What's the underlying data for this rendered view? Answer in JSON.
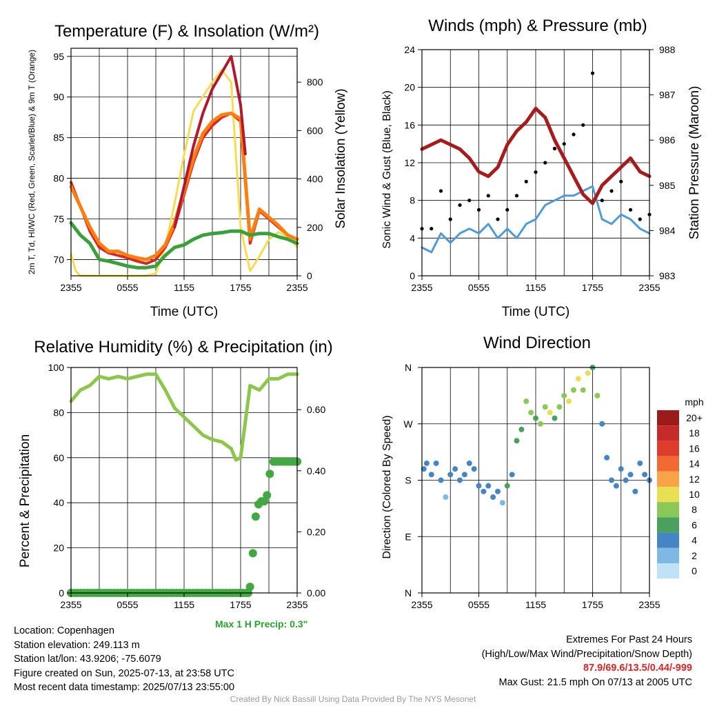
{
  "chart_data": [
    {
      "type": "line",
      "title": "Temperature (F) & Insolation (W/m²)",
      "xlabel": "Time (UTC)",
      "ylabel": "2m T, Td, HI/WC (Red, Green, Scarlet/Blue) & 9m T (Orange)",
      "y2label": "Solar Insolation (Yellow)",
      "x_ticks": [
        "2355",
        "0555",
        "1155",
        "1755",
        "2355"
      ],
      "ylim": [
        68,
        96
      ],
      "y_ticks": [
        70,
        75,
        80,
        85,
        90,
        95
      ],
      "y2lim": [
        0,
        940
      ],
      "y2_ticks": [
        0,
        200,
        400,
        600,
        800
      ],
      "colors": {
        "temp": "#d62728",
        "heat_index": "#b2182b",
        "temp_9m": "#ff7f0e",
        "dewpoint": "#3aa03a",
        "solar": "#f7dc4f"
      },
      "series": [
        {
          "key": "temp",
          "x": [
            0,
            1,
            2,
            3,
            4,
            5,
            6,
            7,
            8,
            9,
            10,
            11,
            12,
            13,
            14,
            15,
            16,
            17,
            18,
            19,
            20,
            21,
            22,
            23,
            24
          ],
          "values": [
            79.5,
            76.5,
            73.5,
            71.5,
            70.8,
            70.5,
            70.2,
            69.8,
            69.5,
            70,
            71.5,
            74,
            78,
            82,
            85,
            86.5,
            87.5,
            88,
            87,
            72,
            76,
            75,
            74,
            73,
            72.5
          ]
        },
        {
          "key": "temp_9m",
          "x": [
            0,
            1,
            2,
            3,
            4,
            5,
            6,
            7,
            8,
            9,
            10,
            11,
            12,
            13,
            14,
            15,
            16,
            17,
            18,
            19,
            20,
            21,
            22,
            23,
            24
          ],
          "values": [
            79,
            76.5,
            74,
            72,
            71,
            71,
            70.5,
            70.2,
            70,
            70.5,
            71.8,
            74.5,
            78.5,
            82.5,
            85.5,
            87,
            87.8,
            88,
            87.3,
            72.5,
            76.2,
            75.2,
            74.2,
            73,
            72.5
          ]
        },
        {
          "key": "heat_index",
          "x": [
            11,
            12,
            13,
            14,
            15,
            16,
            16.5,
            17,
            17.5,
            18,
            18.5
          ],
          "values": [
            74,
            79,
            84,
            88,
            91,
            93,
            94,
            95,
            92,
            89,
            83
          ]
        },
        {
          "key": "dewpoint",
          "x": [
            0,
            1,
            2,
            3,
            4,
            5,
            6,
            7,
            8,
            9,
            10,
            11,
            12,
            13,
            14,
            15,
            16,
            17,
            18,
            19,
            20,
            21,
            22,
            23,
            24
          ],
          "values": [
            74.5,
            73,
            72,
            70,
            69.8,
            69.5,
            69.2,
            69,
            69,
            69.2,
            70.5,
            71.5,
            71.8,
            72.5,
            73,
            73.2,
            73.3,
            73.5,
            73.5,
            73,
            73.2,
            73.2,
            72.8,
            72.5,
            72
          ]
        },
        {
          "key": "solar",
          "x": [
            0,
            0.5,
            1,
            2,
            3,
            4,
            5,
            6,
            7,
            8,
            9,
            10,
            11,
            12,
            13,
            14,
            15,
            16,
            17,
            18,
            19,
            20,
            21,
            22,
            23,
            24
          ],
          "values": [
            90,
            20,
            0,
            0,
            0,
            0,
            0,
            0,
            0,
            0,
            10,
            120,
            300,
            500,
            680,
            740,
            800,
            850,
            800,
            200,
            20,
            80,
            150,
            180,
            160,
            120
          ]
        }
      ]
    },
    {
      "type": "line",
      "title": "Winds (mph) & Pressure (mb)",
      "xlabel": "Time (UTC)",
      "ylabel": "Sonic Wind & Gust (Blue, Black)",
      "y2label": "Station Pressure (Maroon)",
      "x_ticks": [
        "2355",
        "0555",
        "1155",
        "1755",
        "2355"
      ],
      "ylim": [
        0,
        24
      ],
      "y_ticks": [
        0,
        4,
        8,
        12,
        16,
        20,
        24
      ],
      "y2lim": [
        983,
        988
      ],
      "y2_ticks": [
        983,
        984,
        985,
        986,
        987,
        988
      ],
      "colors": {
        "wind": "#4e9bd4",
        "gust": "#000000",
        "pressure": "#a51c1c"
      },
      "series": [
        {
          "key": "wind",
          "x": [
            0,
            1,
            2,
            3,
            4,
            5,
            6,
            7,
            8,
            9,
            10,
            11,
            12,
            13,
            14,
            15,
            16,
            17,
            18,
            19,
            20,
            21,
            22,
            23,
            24
          ],
          "values": [
            3,
            2.5,
            4.5,
            3.5,
            4.5,
            5,
            4.5,
            5.5,
            4,
            5,
            4,
            5.5,
            6,
            7.5,
            8,
            8.5,
            8.5,
            9,
            9.5,
            6,
            5.5,
            6.5,
            6,
            5,
            4.5
          ]
        },
        {
          "key": "pressure",
          "x": [
            0,
            1,
            2,
            3,
            4,
            5,
            6,
            7,
            8,
            9,
            10,
            11,
            12,
            13,
            14,
            15,
            16,
            17,
            18,
            19,
            20,
            21,
            22,
            23,
            24
          ],
          "values": [
            985.8,
            985.9,
            986,
            985.9,
            985.8,
            985.6,
            985.3,
            985.2,
            985.4,
            985.9,
            986.2,
            986.4,
            986.7,
            986.5,
            986,
            985.6,
            985.2,
            984.8,
            984.6,
            985,
            985.2,
            985.4,
            985.6,
            985.3,
            985.2
          ]
        },
        {
          "key": "gust",
          "x": [
            0,
            1,
            2,
            3,
            4,
            5,
            6,
            7,
            8,
            9,
            10,
            11,
            12,
            13,
            14,
            15,
            16,
            17,
            18,
            19,
            20,
            21,
            22,
            23,
            24
          ],
          "values": [
            5,
            5,
            9,
            6,
            7.5,
            8,
            7,
            8.5,
            6,
            7,
            8.5,
            10,
            11,
            12,
            13.5,
            14,
            15,
            16,
            21.5,
            8,
            9,
            10,
            7,
            6,
            6.5
          ]
        }
      ]
    },
    {
      "type": "line",
      "title": "Relative Humidity (%) & Precipitation (in)",
      "ylabel": "Percent & Precipitation",
      "x_ticks": [
        "2355",
        "0555",
        "1155",
        "1755",
        "2355"
      ],
      "ylim": [
        0,
        100
      ],
      "y_ticks": [
        0,
        20,
        40,
        60,
        80,
        100
      ],
      "y2lim": [
        0,
        0.738
      ],
      "y2_ticks": [
        "0.00",
        "0.20",
        "0.40",
        "0.60"
      ],
      "colors": {
        "rh": "#8cc64a",
        "precip": "#43a843"
      },
      "series": [
        {
          "key": "rh",
          "x": [
            0,
            1,
            2,
            3,
            4,
            5,
            6,
            7,
            8,
            9,
            10,
            11,
            12,
            13,
            14,
            15,
            16,
            17,
            17.5,
            18,
            19,
            20,
            21,
            22,
            23,
            24
          ],
          "values": [
            85,
            90,
            92,
            96,
            95,
            96,
            95,
            96,
            97,
            97,
            90,
            82,
            78,
            74,
            70,
            68,
            67,
            64,
            59,
            60,
            92,
            90,
            95,
            95,
            97,
            97
          ]
        },
        {
          "key": "precip",
          "x": [
            0,
            18.8,
            19,
            19.3,
            19.6,
            19.9,
            20.2,
            20.5,
            20.8,
            21.1,
            21.5,
            24
          ],
          "values": [
            0,
            0,
            0.02,
            0.13,
            0.25,
            0.29,
            0.3,
            0.3,
            0.32,
            0.39,
            0.43,
            0.43
          ]
        }
      ],
      "annotation": "Max 1 H Precip: 0.3\""
    },
    {
      "type": "scatter",
      "title": "Wind Direction",
      "ylabel": "Direction (Colored By Speed)",
      "x_ticks": [
        "2355",
        "0555",
        "1155",
        "1755",
        "2355"
      ],
      "y_ticks": [
        "N",
        "E",
        "S",
        "W",
        "N"
      ],
      "legend_title": "mph",
      "legend_labels": [
        "20+",
        "18",
        "16",
        "14",
        "12",
        "10",
        "8",
        "6",
        "4",
        "2",
        "0"
      ],
      "legend_colors": [
        "#9b1b1b",
        "#c52b2b",
        "#de3c2c",
        "#f26a33",
        "#f9a349",
        "#e8df55",
        "#8ac858",
        "#4ba05e",
        "#4685c3",
        "#7fb8e3",
        "#bfe3f5"
      ],
      "points": [
        [
          0.2,
          2.2,
          3
        ],
        [
          0.5,
          2.3,
          3
        ],
        [
          1,
          2.1,
          3
        ],
        [
          1.5,
          2.3,
          4
        ],
        [
          2,
          2.0,
          3
        ],
        [
          2.5,
          1.7,
          2
        ],
        [
          3,
          2.1,
          4
        ],
        [
          3.5,
          2.2,
          4
        ],
        [
          4,
          2.0,
          4
        ],
        [
          4.5,
          2.1,
          3
        ],
        [
          5,
          2.3,
          4
        ],
        [
          5.5,
          2.2,
          4
        ],
        [
          6,
          1.9,
          4
        ],
        [
          6.5,
          1.8,
          3
        ],
        [
          7,
          1.9,
          4
        ],
        [
          7.5,
          1.7,
          3
        ],
        [
          8,
          1.8,
          4
        ],
        [
          8.5,
          1.6,
          2
        ],
        [
          9,
          1.9,
          5
        ],
        [
          9.5,
          2.1,
          4
        ],
        [
          10,
          2.7,
          5
        ],
        [
          10.5,
          2.9,
          6
        ],
        [
          11,
          3.4,
          7
        ],
        [
          11.5,
          3.2,
          8
        ],
        [
          12,
          3.1,
          6
        ],
        [
          12.5,
          3.0,
          7
        ],
        [
          13,
          3.3,
          8
        ],
        [
          13.5,
          3.2,
          9
        ],
        [
          14,
          3.1,
          6
        ],
        [
          14.5,
          3.3,
          8
        ],
        [
          15,
          3.5,
          7
        ],
        [
          15.5,
          3.4,
          9
        ],
        [
          16,
          3.6,
          8
        ],
        [
          16.5,
          3.8,
          10
        ],
        [
          17,
          3.6,
          8
        ],
        [
          17.5,
          3.9,
          9
        ],
        [
          18,
          4.0,
          5
        ],
        [
          18.5,
          3.5,
          8
        ],
        [
          19,
          3.0,
          4
        ],
        [
          19.5,
          2.4,
          4
        ],
        [
          20,
          2.0,
          3
        ],
        [
          20.5,
          1.9,
          3
        ],
        [
          21,
          2.2,
          4
        ],
        [
          21.5,
          2.0,
          3
        ],
        [
          22,
          2.1,
          4
        ],
        [
          22.5,
          1.8,
          3
        ],
        [
          23,
          2.3,
          4
        ],
        [
          23.5,
          2.1,
          4
        ],
        [
          24,
          2.0,
          4
        ]
      ]
    }
  ],
  "meta": {
    "location": "Location: Copenhagen",
    "elevation": "Station elevation: 249.113 m",
    "latlon": "Station lat/lon: 43.9206; -75.6079",
    "created": "Figure created on Sun, 2025-07-13, at 23:58 UTC",
    "recent": "Most recent data timestamp: 2025/07/13 23:55:00"
  },
  "extremes": {
    "title": "Extremes For Past 24 Hours",
    "subtitle": "(High/Low/Max Wind/Precipitation/Snow Depth)",
    "values": "87.9/69.6/13.5/0.44/-999",
    "max_gust": "Max Gust: 21.5 mph On 07/13 at 2005 UTC"
  },
  "credit": "Created By Nick Bassill Using Data Provided By The NYS Mesonet"
}
